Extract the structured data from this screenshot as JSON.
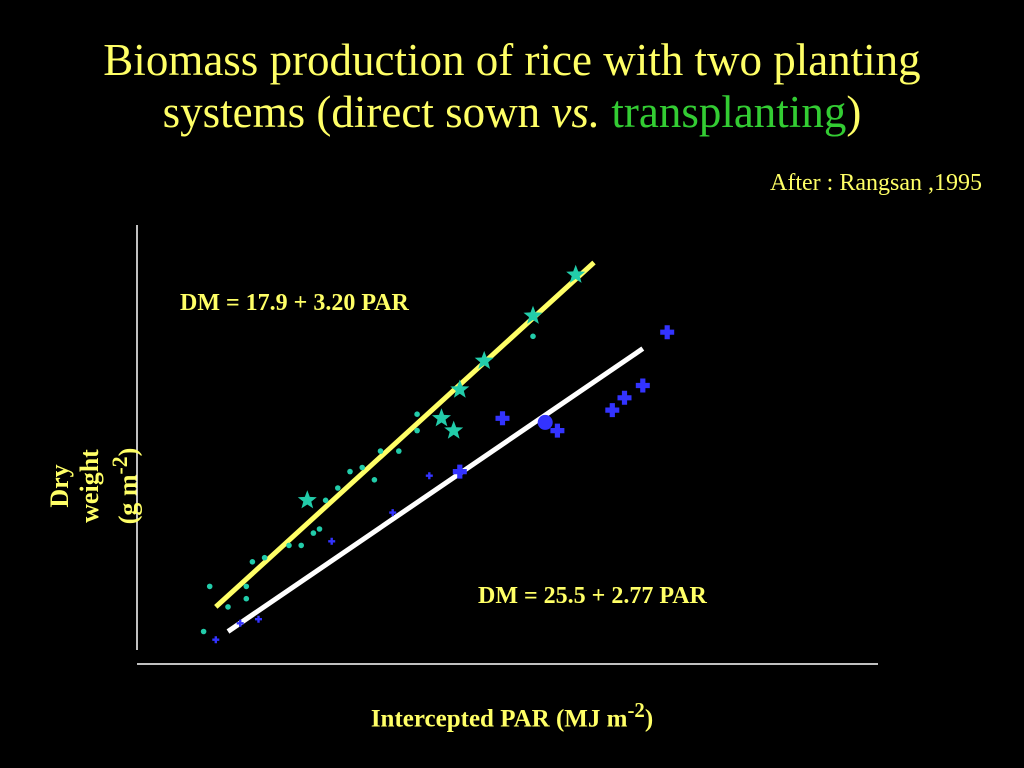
{
  "title": {
    "line1": "Biomass production of rice with two planting",
    "line2_start": "systems (direct sown ",
    "line2_vs": "vs.",
    "line2_space": " ",
    "line2_green": "transplanting",
    "line2_end": ")"
  },
  "source": "After : Rangsan ,1995",
  "colors": {
    "background": "#000000",
    "text": "#ffff66",
    "highlight": "#33cc33",
    "direct_line": "#ffff66",
    "transplant_line": "#ffffff",
    "direct_markers": "#22ccaa",
    "transplant_markers": "#3333ff"
  },
  "chart_data": {
    "type": "scatter",
    "title": "",
    "xlabel": "Intercepted PAR (MJ m-2)",
    "ylabel": "Dry weight (g m-2)",
    "xlim": [
      0,
      100
    ],
    "ylim": [
      0,
      100
    ],
    "grid": false,
    "series": [
      {
        "marker": "dot",
        "color": "#22ccaa",
        "points": [
          [
            6,
            5
          ],
          [
            7,
            16
          ],
          [
            10,
            11
          ],
          [
            13,
            13
          ],
          [
            13,
            16
          ],
          [
            14,
            22
          ],
          [
            16,
            23
          ],
          [
            20,
            26
          ],
          [
            22,
            26
          ],
          [
            24,
            29
          ],
          [
            25,
            30
          ],
          [
            26,
            37
          ],
          [
            28,
            40
          ],
          [
            30,
            44
          ],
          [
            32,
            45
          ],
          [
            34,
            42
          ],
          [
            35,
            49
          ],
          [
            38,
            49
          ],
          [
            41,
            54
          ],
          [
            41,
            58
          ],
          [
            60,
            77
          ]
        ]
      },
      {
        "marker": "star",
        "color": "#22ccaa",
        "points": [
          [
            23,
            37
          ],
          [
            45,
            57
          ],
          [
            47,
            54
          ],
          [
            48,
            64
          ],
          [
            52,
            71
          ],
          [
            60,
            82
          ],
          [
            67,
            92
          ]
        ]
      },
      {
        "marker": "small-plus",
        "color": "#3333ff",
        "points": [
          [
            8,
            3
          ],
          [
            12,
            7
          ],
          [
            15,
            8
          ],
          [
            27,
            27
          ],
          [
            37,
            34
          ],
          [
            43,
            43
          ]
        ]
      },
      {
        "marker": "plus",
        "color": "#3333ff",
        "points": [
          [
            48,
            44
          ],
          [
            55,
            57
          ],
          [
            64,
            54
          ],
          [
            73,
            59
          ],
          [
            75,
            62
          ],
          [
            78,
            65
          ],
          [
            82,
            78
          ]
        ]
      },
      {
        "marker": "circle",
        "color": "#3333ff",
        "points": [
          [
            62,
            56
          ]
        ]
      }
    ],
    "fit_lines": [
      {
        "label": "DM = 17.9 + 3.20 PAR",
        "color": "#ffff66",
        "from": [
          8,
          11
        ],
        "to": [
          70,
          95
        ]
      },
      {
        "label": "DM = 25.5 + 2.77 PAR",
        "color": "#ffffff",
        "from": [
          10,
          5
        ],
        "to": [
          78,
          74
        ]
      }
    ]
  }
}
